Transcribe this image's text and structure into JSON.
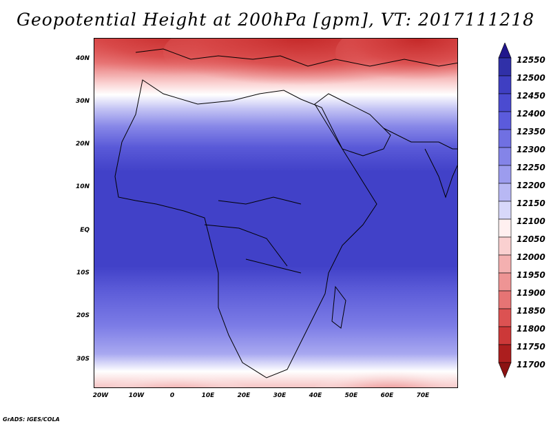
{
  "title": "Geopotential Height at 200hPa [gpm], VT: 2017111218",
  "lat_labels": [
    "40N",
    "30N",
    "20N",
    "10N",
    "EQ",
    "10S",
    "20S",
    "30S"
  ],
  "lon_labels": [
    "20W",
    "10W",
    "0",
    "10E",
    "20E",
    "30E",
    "40E",
    "50E",
    "60E",
    "70E"
  ],
  "colorbar": {
    "labels": [
      "12550",
      "12500",
      "12450",
      "12400",
      "12350",
      "12300",
      "12250",
      "12200",
      "12150",
      "12100",
      "12050",
      "12000",
      "11950",
      "11900",
      "11850",
      "11800",
      "11750",
      "11700"
    ],
    "colors": [
      "#21168c",
      "#3030a8",
      "#3f3fc2",
      "#4b4bd0",
      "#5b5bdc",
      "#7070e2",
      "#8484e8",
      "#9c9cee",
      "#b8b8f4",
      "#d8d8fa",
      "#fff0f0",
      "#fad0d0",
      "#f4b0b0",
      "#ee9494",
      "#e67474",
      "#dc5252",
      "#cc3838",
      "#ac1e1e",
      "#8c1212"
    ]
  },
  "credit": "GrADS: IGES/COLA"
}
